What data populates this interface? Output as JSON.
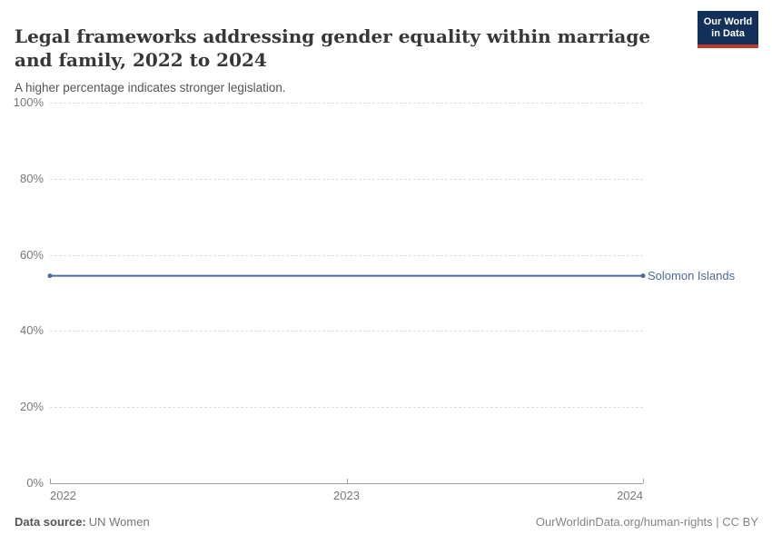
{
  "header": {
    "title": "Legal frameworks addressing gender equality within marriage and family, 2022 to 2024",
    "subtitle": "A higher percentage indicates stronger legislation."
  },
  "logo": {
    "line1": "Our World",
    "line2": "in Data"
  },
  "colors": {
    "logo_bg": "#12305a",
    "logo_accent": "#c0392b",
    "title_text": "#383636",
    "series_blue": "#4C6A9C",
    "gridline": "#dedede",
    "axis": "#a1a1a1",
    "tick_label": "#787878"
  },
  "chart_data": {
    "type": "line",
    "title": "Legal frameworks addressing gender equality within marriage and family, 2022 to 2024",
    "subtitle": "A higher percentage indicates stronger legislation.",
    "xlabel": "",
    "ylabel": "",
    "xlim": [
      2022,
      2024
    ],
    "ylim": [
      0,
      100
    ],
    "x_ticks": [
      2022,
      2023,
      2024
    ],
    "y_ticks": [
      "0%",
      "20%",
      "40%",
      "60%",
      "80%",
      "100%"
    ],
    "grid": "horizontal-dashed",
    "legend_position": "end-of-line",
    "series": [
      {
        "name": "Solomon Islands",
        "color": "#4C6A9C",
        "x": [
          2022,
          2023,
          2024
        ],
        "values": [
          54.5,
          54.5,
          54.5
        ]
      }
    ]
  },
  "footer": {
    "source_label": "Data source:",
    "source_value": "UN Women",
    "credit": "OurWorldinData.org/human-rights | CC BY"
  }
}
